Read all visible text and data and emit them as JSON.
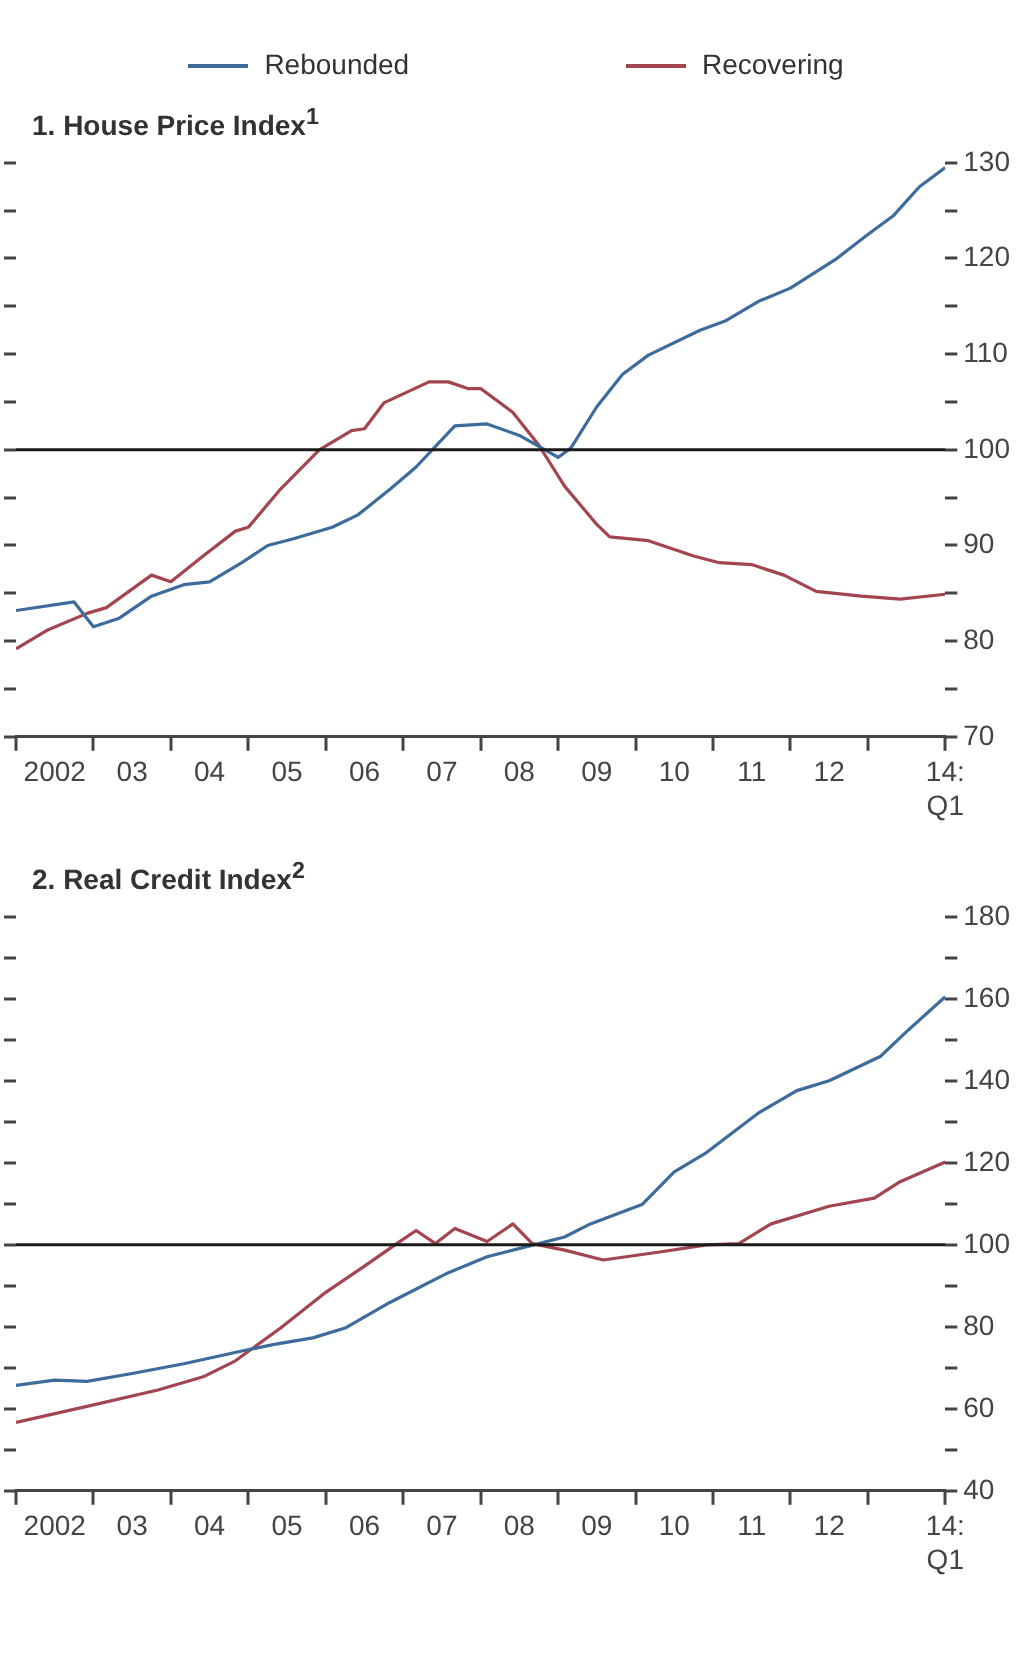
{
  "chart_data": [
    {
      "type": "line",
      "title": "1. House Price Index$^{1}$",
      "legend": "top",
      "line_style": "solid",
      "marker": "none",
      "xlim": [
        "2002-01",
        "2014-01"
      ],
      "xticks": [
        {
          "value": "2002-01",
          "label": null
        },
        {
          "value": "2002-07",
          "label": "2002"
        },
        {
          "value": "2003-01",
          "label": null
        },
        {
          "value": "2003-07",
          "label": "03"
        },
        {
          "value": "2004-01",
          "label": null
        },
        {
          "value": "2004-07",
          "label": "04"
        },
        {
          "value": "2005-01",
          "label": null
        },
        {
          "value": "2005-07",
          "label": "05"
        },
        {
          "value": "2006-01",
          "label": null
        },
        {
          "value": "2006-07",
          "label": "06"
        },
        {
          "value": "2007-01",
          "label": null
        },
        {
          "value": "2007-07",
          "label": "07"
        },
        {
          "value": "2008-01",
          "label": null
        },
        {
          "value": "2008-07",
          "label": "08"
        },
        {
          "value": "2009-01",
          "label": null
        },
        {
          "value": "2009-07",
          "label": "09"
        },
        {
          "value": "2010-01",
          "label": null
        },
        {
          "value": "2010-07",
          "label": "10"
        },
        {
          "value": "2011-01",
          "label": null
        },
        {
          "value": "2011-07",
          "label": "11"
        },
        {
          "value": "2012-01",
          "label": null
        },
        {
          "value": "2012-07",
          "label": "12"
        },
        {
          "value": "2013-01",
          "label": null
        },
        {
          "value": "2014-01",
          "label": "14:\nQ1"
        }
      ],
      "ylim": [
        70,
        130
      ],
      "yticks": [
        70,
        {
          "value": 75,
          "label": null
        },
        80,
        {
          "value": 85,
          "label": null
        },
        90,
        {
          "value": 95,
          "label": null
        },
        100,
        {
          "value": 105,
          "label": null
        },
        110,
        {
          "value": 115,
          "label": null
        },
        120,
        {
          "value": 125,
          "label": null
        },
        130
      ],
      "ref_lines": [
        {
          "axis": "y",
          "value": 100,
          "color": "#1a1a1a"
        }
      ],
      "series": [
        {
          "name": "Rebounded",
          "color": "#3d6b9c",
          "x": [
            "2002-01",
            "2002-10",
            "2003-01",
            "2003-05",
            "2003-10",
            "2004-03",
            "2004-07",
            "2004-12",
            "2005-04",
            "2005-08",
            "2006-02",
            "2006-06",
            "2006-11",
            "2007-03",
            "2007-09",
            "2008-02",
            "2008-07",
            "2008-11",
            "2009-01",
            "2009-03",
            "2009-07",
            "2009-11",
            "2010-03",
            "2010-11",
            "2011-03",
            "2011-08",
            "2012-01",
            "2012-08",
            "2013-01",
            "2013-05",
            "2013-09",
            "2014-01"
          ],
          "values": [
            83.2,
            84.1,
            81.5,
            82.4,
            84.7,
            85.9,
            86.2,
            88.2,
            90,
            90.7,
            91.9,
            93.2,
            95.9,
            98.2,
            102.5,
            102.7,
            101.5,
            100,
            99.2,
            100.2,
            104.5,
            107.9,
            109.9,
            112.5,
            113.5,
            115.5,
            116.9,
            119.9,
            122.5,
            124.5,
            127.5,
            129.5
          ]
        },
        {
          "name": "Recovering",
          "color": "#a2454f",
          "x": [
            "2002-01",
            "2002-06",
            "2002-12",
            "2003-03",
            "2003-10",
            "2004-01",
            "2004-06",
            "2004-11",
            "2005-01",
            "2005-06",
            "2005-12",
            "2006-05",
            "2006-07",
            "2006-10",
            "2007-05",
            "2007-08",
            "2007-11",
            "2008-01",
            "2008-06",
            "2008-10",
            "2009-02",
            "2009-07",
            "2009-09",
            "2010-03",
            "2010-10",
            "2011-02",
            "2011-07",
            "2011-12",
            "2012-05",
            "2012-12",
            "2013-06",
            "2014-01"
          ],
          "values": [
            79.2,
            81.2,
            82.9,
            83.5,
            86.9,
            86.2,
            88.9,
            91.5,
            91.9,
            95.9,
            100,
            102,
            102.2,
            104.9,
            107.1,
            107.1,
            106.4,
            106.4,
            103.9,
            100.5,
            96.2,
            92.2,
            90.9,
            90.5,
            88.9,
            88.2,
            88,
            86.9,
            85.2,
            84.7,
            84.4,
            84.9
          ]
        }
      ]
    },
    {
      "type": "line",
      "title": "2. Real Credit Index$^{2}$",
      "line_style": "solid",
      "marker": "none",
      "xlim": [
        "2002-01",
        "2014-01"
      ],
      "xticks": [
        {
          "value": "2002-01",
          "label": null
        },
        {
          "value": "2002-07",
          "label": "2002"
        },
        {
          "value": "2003-01",
          "label": null
        },
        {
          "value": "2003-07",
          "label": "03"
        },
        {
          "value": "2004-01",
          "label": null
        },
        {
          "value": "2004-07",
          "label": "04"
        },
        {
          "value": "2005-01",
          "label": null
        },
        {
          "value": "2005-07",
          "label": "05"
        },
        {
          "value": "2006-01",
          "label": null
        },
        {
          "value": "2006-07",
          "label": "06"
        },
        {
          "value": "2007-01",
          "label": null
        },
        {
          "value": "2007-07",
          "label": "07"
        },
        {
          "value": "2008-01",
          "label": null
        },
        {
          "value": "2008-07",
          "label": "08"
        },
        {
          "value": "2009-01",
          "label": null
        },
        {
          "value": "2009-07",
          "label": "09"
        },
        {
          "value": "2010-01",
          "label": null
        },
        {
          "value": "2010-07",
          "label": "10"
        },
        {
          "value": "2011-01",
          "label": null
        },
        {
          "value": "2011-07",
          "label": "11"
        },
        {
          "value": "2012-01",
          "label": null
        },
        {
          "value": "2012-07",
          "label": "12"
        },
        {
          "value": "2013-01",
          "label": null
        },
        {
          "value": "2014-01",
          "label": "14:\nQ1"
        }
      ],
      "ylim": [
        40,
        180
      ],
      "yticks": [
        40,
        {
          "value": 50,
          "label": null
        },
        60,
        {
          "value": 70,
          "label": null
        },
        80,
        {
          "value": 90,
          "label": null
        },
        100,
        {
          "value": 110,
          "label": null
        },
        120,
        {
          "value": 130,
          "label": null
        },
        140,
        {
          "value": 150,
          "label": null
        },
        160,
        {
          "value": 170,
          "label": null
        },
        180
      ],
      "ref_lines": [
        {
          "axis": "y",
          "value": 100,
          "color": "#1a1a1a"
        }
      ],
      "series": [
        {
          "color": "#3d6b9c",
          "x": [
            "2002-01",
            "2002-07",
            "2002-12",
            "2003-07",
            "2004-03",
            "2004-12",
            "2005-05",
            "2005-11",
            "2006-04",
            "2006-11",
            "2007-08",
            "2008-02",
            "2008-08",
            "2009-02",
            "2009-06",
            "2010-02",
            "2010-07",
            "2010-12",
            "2011-08",
            "2012-02",
            "2012-07",
            "2013-03",
            "2013-07",
            "2014-01"
          ],
          "values": [
            65.7,
            67,
            66.7,
            68.6,
            71,
            74.1,
            75.7,
            77.3,
            79.7,
            86,
            93.2,
            97.1,
            99.5,
            101.9,
            105.1,
            109.8,
            117.8,
            122.5,
            132.1,
            137.6,
            140,
            146,
            152,
            160.5
          ]
        },
        {
          "color": "#a2454f",
          "x": [
            "2002-01",
            "2002-12",
            "2003-11",
            "2004-06",
            "2004-11",
            "2005-06",
            "2006-01",
            "2006-07",
            "2006-12",
            "2007-03",
            "2007-06",
            "2007-09",
            "2008-02",
            "2008-06",
            "2008-09",
            "2009-02",
            "2009-08",
            "2010-05",
            "2010-12",
            "2011-05",
            "2011-10",
            "2012-07",
            "2013-02",
            "2013-06",
            "2014-01"
          ],
          "values": [
            56.7,
            60.6,
            64.6,
            67.8,
            71.7,
            79.7,
            88.4,
            94.8,
            100.3,
            103.5,
            100.3,
            104,
            100.8,
            105.1,
            100.3,
            98.7,
            96.3,
            98.3,
            100,
            100.3,
            105.1,
            109.4,
            111.4,
            115.4,
            120.2
          ]
        }
      ]
    }
  ]
}
